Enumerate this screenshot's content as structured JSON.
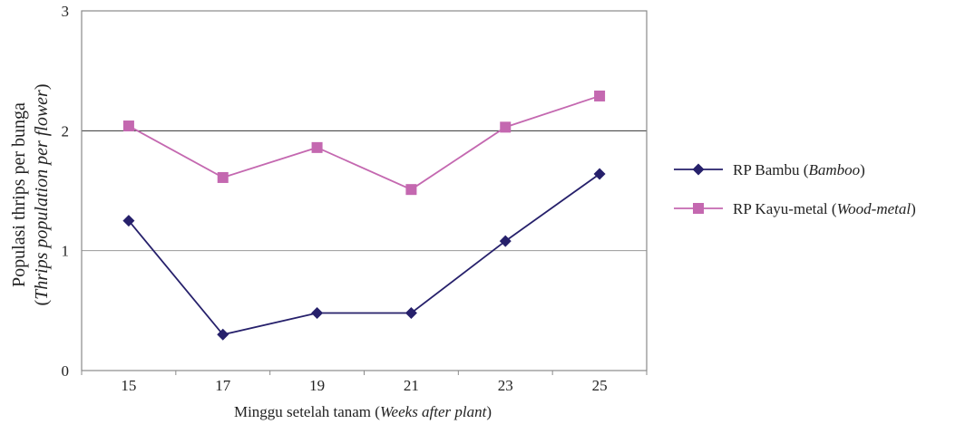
{
  "chart_data": {
    "type": "line",
    "x": [
      15,
      17,
      19,
      21,
      23,
      25
    ],
    "xlabel": {
      "main": "Minggu setelah tanam (",
      "italic": "Weeks after plant",
      "end": ")"
    },
    "ylabel": {
      "line1": "Populasi thrips per bunga",
      "line2_open": "(",
      "line2_italic": "Thrips population per flower",
      "line2_close": ")"
    },
    "ylim": [
      0,
      3
    ],
    "yticks": [
      "0",
      "1",
      "2",
      "3"
    ],
    "xticks": [
      "15",
      "17",
      "19",
      "21",
      "23",
      "25"
    ],
    "grid": true,
    "legend_position": "right",
    "series": [
      {
        "name": "RP Bambu (Bamboo)",
        "label_main": "RP Bambu (",
        "label_italic": "Bamboo",
        "label_end": ")",
        "color": "#26206b",
        "marker": "diamond",
        "values": [
          1.25,
          0.3,
          0.48,
          0.48,
          1.08,
          1.64
        ]
      },
      {
        "name": "RP Kayu-metal (Wood-metal)",
        "label_main": "RP Kayu-metal (",
        "label_italic": "Wood-metal",
        "label_end": ")",
        "color": "#c468b0",
        "marker": "square",
        "values": [
          2.04,
          1.61,
          1.86,
          1.51,
          2.03,
          2.29
        ]
      }
    ]
  }
}
